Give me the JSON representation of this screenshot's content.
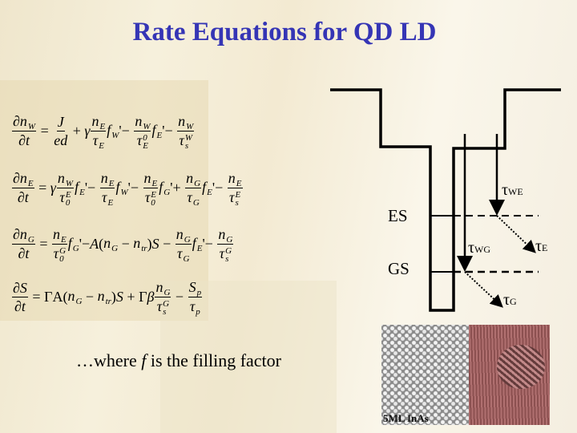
{
  "title": "Rate Equations for QD LD",
  "equations": [
    [
      {
        "f": [
          [
            {
              "s": "∂"
            },
            {
              "v": "n",
              "sub": "W"
            }
          ],
          [
            {
              "s": "∂"
            },
            {
              "v": "t"
            }
          ]
        ]
      },
      {
        "s": " = "
      },
      {
        "f": [
          [
            {
              "v": "J"
            }
          ],
          [
            {
              "v": "ed"
            }
          ]
        ]
      },
      {
        "s": " + "
      },
      {
        "v": "γ"
      },
      {
        "f": [
          [
            {
              "v": "n",
              "sub": "E"
            }
          ],
          [
            {
              "v": "τ",
              "sub": "E"
            }
          ]
        ]
      },
      {
        "v": "f",
        "sub": "W"
      },
      {
        "s": "'− "
      },
      {
        "f": [
          [
            {
              "v": "n",
              "sub": "W"
            }
          ],
          [
            {
              "v": "τ",
              "sub": "E",
              "sup": "0"
            }
          ]
        ]
      },
      {
        "v": "f",
        "sub": "E"
      },
      {
        "s": "'− "
      },
      {
        "f": [
          [
            {
              "v": "n",
              "sub": "W"
            }
          ],
          [
            {
              "v": "τ",
              "sub": "s",
              "sup": "W"
            }
          ]
        ]
      }
    ],
    [
      {
        "f": [
          [
            {
              "s": "∂"
            },
            {
              "v": "n",
              "sub": "E"
            }
          ],
          [
            {
              "s": "∂"
            },
            {
              "v": "t"
            }
          ]
        ]
      },
      {
        "s": " = "
      },
      {
        "v": "γ"
      },
      {
        "f": [
          [
            {
              "v": "n",
              "sub": "W"
            }
          ],
          [
            {
              "v": "τ",
              "sub": "0",
              "sup": "E"
            }
          ]
        ]
      },
      {
        "v": "f",
        "sub": "E"
      },
      {
        "s": "'− "
      },
      {
        "f": [
          [
            {
              "v": "n",
              "sub": "E"
            }
          ],
          [
            {
              "v": "τ",
              "sub": "E"
            }
          ]
        ]
      },
      {
        "v": "f",
        "sub": "W"
      },
      {
        "s": "'− "
      },
      {
        "f": [
          [
            {
              "v": "n",
              "sub": "E"
            }
          ],
          [
            {
              "v": "τ",
              "sub": "0",
              "sup": "E"
            }
          ]
        ]
      },
      {
        "v": "f",
        "sub": "G"
      },
      {
        "s": "'+ "
      },
      {
        "f": [
          [
            {
              "v": "n",
              "sub": "G"
            }
          ],
          [
            {
              "v": "τ",
              "sub": "G"
            }
          ]
        ]
      },
      {
        "v": "f",
        "sub": "E"
      },
      {
        "s": "'− "
      },
      {
        "f": [
          [
            {
              "v": "n",
              "sub": "E"
            }
          ],
          [
            {
              "v": "τ",
              "sub": "s",
              "sup": "E"
            }
          ]
        ]
      }
    ],
    [
      {
        "f": [
          [
            {
              "s": "∂"
            },
            {
              "v": "n",
              "sub": "G"
            }
          ],
          [
            {
              "s": "∂"
            },
            {
              "v": "t"
            }
          ]
        ]
      },
      {
        "s": " = "
      },
      {
        "f": [
          [
            {
              "v": "n",
              "sub": "E"
            }
          ],
          [
            {
              "v": "τ",
              "sub": "0",
              "sup": "G"
            }
          ]
        ]
      },
      {
        "v": "f",
        "sub": "G"
      },
      {
        "s": "'−"
      },
      {
        "v": "A"
      },
      {
        "s": "("
      },
      {
        "v": "n",
        "sub": "G"
      },
      {
        "s": " − "
      },
      {
        "v": "n",
        "sub": "tr"
      },
      {
        "s": ")"
      },
      {
        "v": "S"
      },
      {
        "s": " − "
      },
      {
        "f": [
          [
            {
              "v": "n",
              "sub": "G"
            }
          ],
          [
            {
              "v": "τ",
              "sub": "G"
            }
          ]
        ]
      },
      {
        "v": "f",
        "sub": "E"
      },
      {
        "s": "'− "
      },
      {
        "f": [
          [
            {
              "v": "n",
              "sub": "G"
            }
          ],
          [
            {
              "v": "τ",
              "sub": "s",
              "sup": "G"
            }
          ]
        ]
      }
    ],
    [
      {
        "f": [
          [
            {
              "s": "∂"
            },
            {
              "v": "S"
            }
          ],
          [
            {
              "s": "∂"
            },
            {
              "v": "t"
            }
          ]
        ]
      },
      {
        "s": " = ΓA("
      },
      {
        "v": "n",
        "sub": "G"
      },
      {
        "s": " − "
      },
      {
        "v": "n",
        "sub": "tr"
      },
      {
        "s": ")"
      },
      {
        "v": "S"
      },
      {
        "s": " + Γ"
      },
      {
        "v": "β"
      },
      {
        "f": [
          [
            {
              "v": "n",
              "sub": "G"
            }
          ],
          [
            {
              "v": "τ",
              "sub": "s",
              "sup": "G"
            }
          ]
        ]
      },
      {
        "s": " − "
      },
      {
        "f": [
          [
            {
              "v": "S",
              "sub": "p"
            }
          ],
          [
            {
              "v": "τ",
              "sub": "p"
            }
          ]
        ]
      }
    ]
  ],
  "footer": {
    "prefix": "…where ",
    "var": "f",
    "suffix": " is the filling factor"
  },
  "diagram": {
    "levels": {
      "es": "ES",
      "gs": "GS"
    },
    "taus": {
      "we": {
        "base": "τ",
        "sub": "WE"
      },
      "wg": {
        "base": "τ",
        "sub": "WG"
      },
      "e": {
        "base": "τ",
        "sub": "E"
      },
      "g": {
        "base": "τ",
        "sub": "G"
      }
    }
  },
  "photo_caption": "5ML InAs"
}
